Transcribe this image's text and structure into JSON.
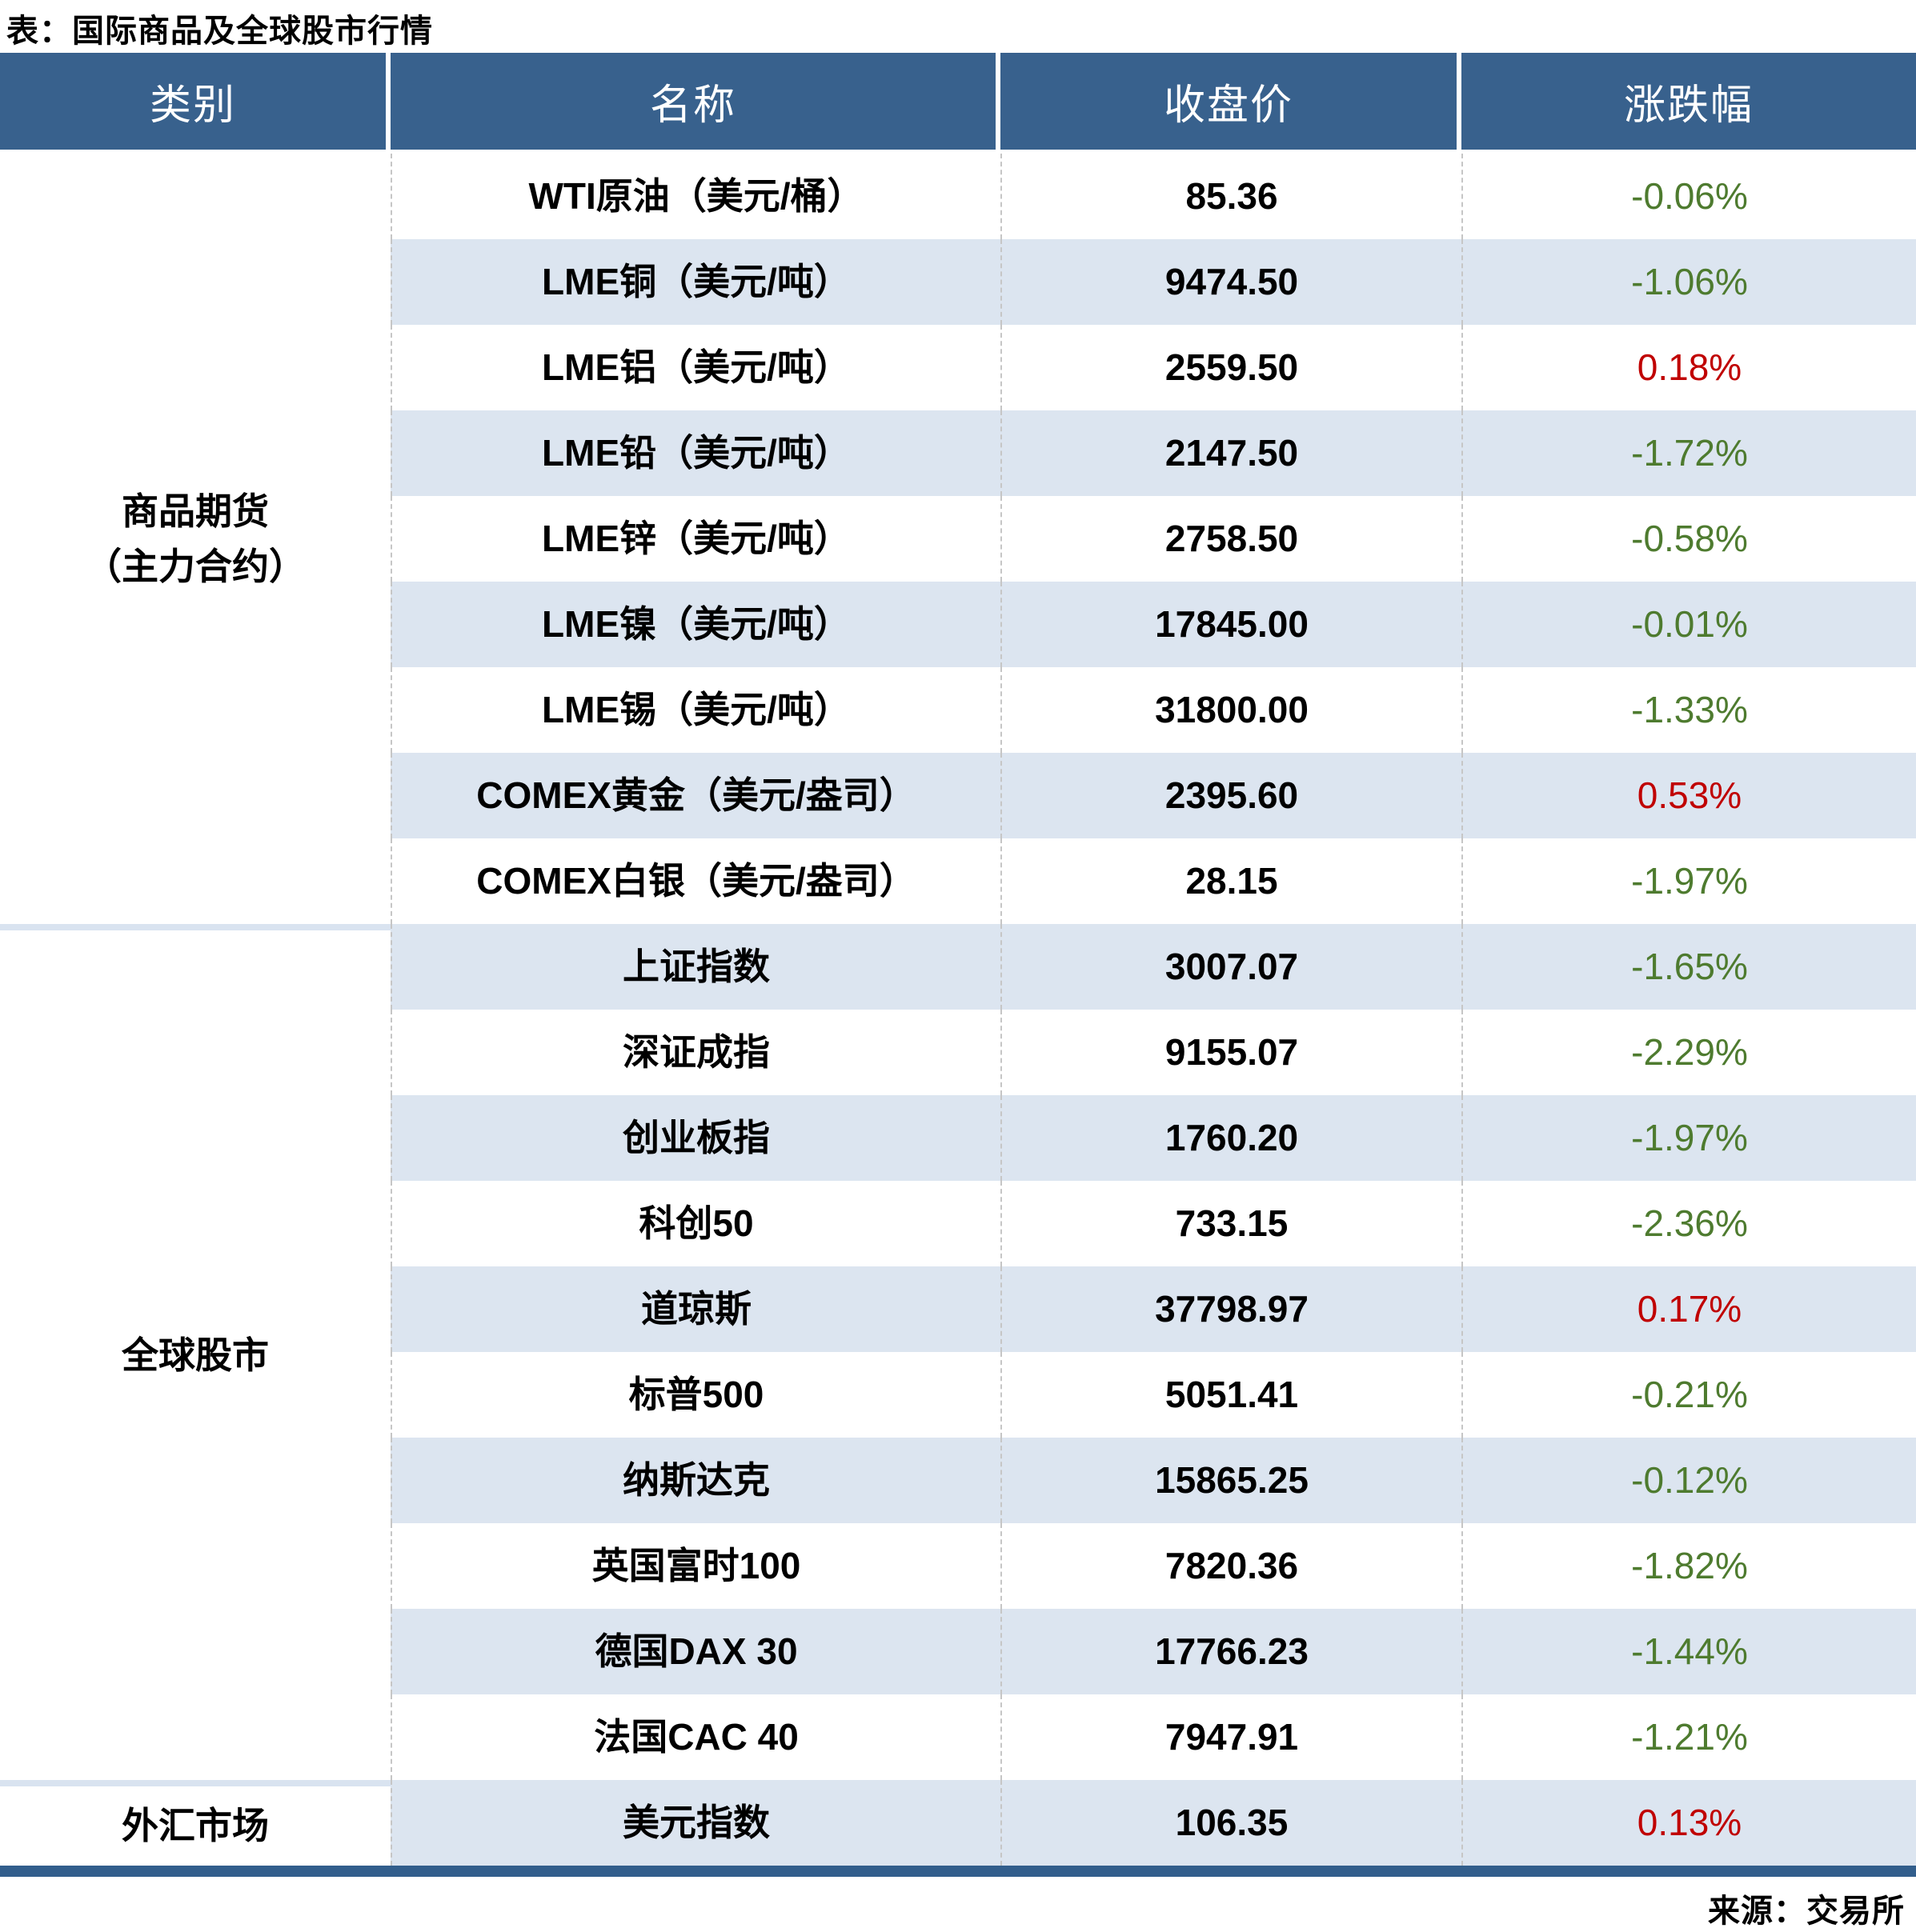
{
  "title": "表：国际商品及全球股市行情",
  "source_note": "来源：交易所",
  "columns": {
    "category": "类别",
    "name": "名称",
    "close": "收盘价",
    "change": "涨跌幅"
  },
  "colors": {
    "header_bg": "#38618D",
    "header_text": "#ffffff",
    "row_band_bg": "#DCE5F0",
    "up_red": "#C00000",
    "down_green": "#4E7B2F",
    "bottom_rule": "#325E8C",
    "column_divider": "#C6C6C6",
    "group_divider": "#D9E3F0"
  },
  "chart_data": {
    "type": "table",
    "title": "表：国际商品及全球股市行情",
    "columns": [
      "类别",
      "名称",
      "收盘价",
      "涨跌幅"
    ],
    "groups": [
      {
        "category": "商品期货（主力合约）",
        "category_lines": [
          "商品期货",
          "（主力合约）"
        ],
        "rows": [
          {
            "name": "WTI原油（美元/桶）",
            "close": "85.36",
            "change": "-0.06%"
          },
          {
            "name": "LME铜（美元/吨）",
            "close": "9474.50",
            "change": "-1.06%"
          },
          {
            "name": "LME铝（美元/吨）",
            "close": "2559.50",
            "change": "0.18%"
          },
          {
            "name": "LME铅（美元/吨）",
            "close": "2147.50",
            "change": "-1.72%"
          },
          {
            "name": "LME锌（美元/吨）",
            "close": "2758.50",
            "change": "-0.58%"
          },
          {
            "name": "LME镍（美元/吨）",
            "close": "17845.00",
            "change": "-0.01%"
          },
          {
            "name": "LME锡（美元/吨）",
            "close": "31800.00",
            "change": "-1.33%"
          },
          {
            "name": "COMEX黄金（美元/盎司）",
            "close": "2395.60",
            "change": "0.53%"
          },
          {
            "name": "COMEX白银（美元/盎司）",
            "close": "28.15",
            "change": "-1.97%"
          }
        ]
      },
      {
        "category": "全球股市",
        "category_lines": [
          "全球股市"
        ],
        "rows": [
          {
            "name": "上证指数",
            "close": "3007.07",
            "change": "-1.65%"
          },
          {
            "name": "深证成指",
            "close": "9155.07",
            "change": "-2.29%"
          },
          {
            "name": "创业板指",
            "close": "1760.20",
            "change": "-1.97%"
          },
          {
            "name": "科创50",
            "close": "733.15",
            "change": "-2.36%"
          },
          {
            "name": "道琼斯",
            "close": "37798.97",
            "change": "0.17%"
          },
          {
            "name": "标普500",
            "close": "5051.41",
            "change": "-0.21%"
          },
          {
            "name": "纳斯达克",
            "close": "15865.25",
            "change": "-0.12%"
          },
          {
            "name": "英国富时100",
            "close": "7820.36",
            "change": "-1.82%"
          },
          {
            "name": "德国DAX 30",
            "close": "17766.23",
            "change": "-1.44%"
          },
          {
            "name": "法国CAC 40",
            "close": "7947.91",
            "change": "-1.21%"
          }
        ]
      },
      {
        "category": "外汇市场",
        "category_lines": [
          "外汇市场"
        ],
        "rows": [
          {
            "name": "美元指数",
            "close": "106.35",
            "change": "0.13%"
          }
        ]
      }
    ]
  }
}
